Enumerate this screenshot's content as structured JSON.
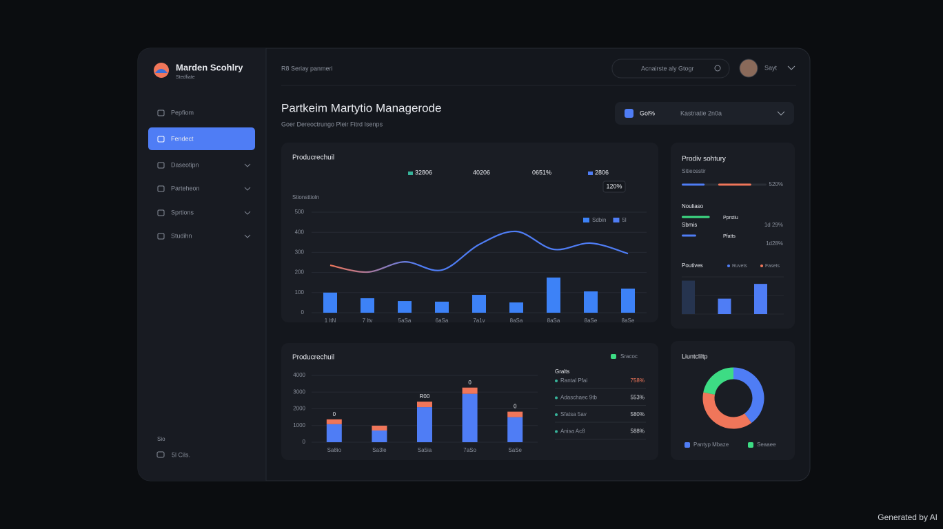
{
  "brand": {
    "name": "Marden Scohlry",
    "tagline": "Stedfiate"
  },
  "nav": {
    "items": [
      "Pepfiom",
      "Fendect",
      "Daseotipn",
      "Parteheon",
      "Sprtions",
      "Studihn"
    ],
    "active": 1,
    "expandable": [
      false,
      false,
      true,
      true,
      true,
      true
    ]
  },
  "sidebar_footer": {
    "caption": "Sio",
    "item": "5l Cils."
  },
  "topbar": {
    "breadcrumb": "R8 Seriay panmeri",
    "search_placeholder": "Acnairste aly Gtogr",
    "user": "Sayt"
  },
  "page": {
    "title": "Partkeim Martytio Managerode",
    "subtitle": "Goer Dereoctrungo Pleir Fitrd Isenps"
  },
  "filter": {
    "tag": "Gol%",
    "range": "Kastnatie 2n0a"
  },
  "chart_data": [
    {
      "type": "bar-line",
      "title": "Producrechuil",
      "stats": [
        {
          "label": "32806",
          "color": "#37b39a"
        },
        {
          "label": "40206"
        },
        {
          "label": "0651%"
        },
        {
          "label": "2806",
          "color": "#4f7df5"
        }
      ],
      "badge": "120%",
      "y_label": "Stionsttioln",
      "categories": [
        "1 ltN",
        "7 ltv",
        "5aSa",
        "6aSa",
        "7a1v",
        "8aSa",
        "8aSa",
        "8aSe",
        "8aSe"
      ],
      "ylim": [
        0,
        500
      ],
      "yticks": [
        0,
        100,
        200,
        300,
        400,
        500
      ],
      "grid": true,
      "legend": "top-right",
      "series": [
        {
          "name": "Sdbin",
          "type": "bar",
          "color": "#3d82f7",
          "values": [
            100,
            72,
            58,
            55,
            89,
            51,
            175,
            106,
            120
          ]
        },
        {
          "name": "5l",
          "type": "line",
          "color": "#4f7df5",
          "start_color": "#f0765a",
          "values": [
            236,
            202,
            253,
            212,
            339,
            404,
            315,
            346,
            294
          ]
        }
      ]
    },
    {
      "type": "stacked-bar",
      "title": "Producrechuil",
      "legend": [
        {
          "label": "Sracoc",
          "color": "#3ddc84"
        }
      ],
      "categories": [
        "Sa8io",
        "Sa3le",
        "Sa5ia",
        "7aSo",
        "SaSe"
      ],
      "ylim": [
        0,
        4000
      ],
      "yticks": [
        0,
        1000,
        2000,
        3000,
        4000
      ],
      "grid": true,
      "series": [
        {
          "color": "#4f7df5",
          "values": [
            1080,
            700,
            2100,
            2900,
            1500
          ]
        },
        {
          "color": "#f0765a",
          "values": [
            290,
            290,
            330,
            370,
            330
          ]
        }
      ],
      "bar_labels": [
        "0",
        null,
        "R00",
        "0",
        "0"
      ],
      "table": {
        "header": "Gralts",
        "rows": [
          [
            "Rantal Pfai",
            "758%"
          ],
          [
            "Adaschaec 9tb",
            "553%"
          ],
          [
            "Sfatsa 5av",
            "580%"
          ],
          [
            "Anisa Ac8",
            "588%"
          ]
        ],
        "highlight": 0
      }
    },
    {
      "type": "donut",
      "title": "Liuntcliltp",
      "values": [
        40,
        38,
        22
      ],
      "colors": [
        "#4f7df5",
        "#f0765a",
        "#3ddc84"
      ],
      "legend": [
        {
          "label": "Pantyp Mbaze",
          "color": "#4f7df5"
        },
        {
          "label": "Seaaee",
          "color": "#3ddc84"
        }
      ]
    }
  ],
  "summary": {
    "title": "Prodiv sohtury",
    "caption": "Sitieosstir",
    "rows": [
      {
        "segments": [
          {
            "start": 0,
            "length": 27,
            "color": "#4f7df5"
          },
          {
            "start": 43,
            "length": 39,
            "color": "#f0765a"
          }
        ],
        "value": "520%"
      },
      {
        "label": "Nouliaso",
        "segments": [
          {
            "start": 0,
            "length": 33,
            "color": "#3ddc84"
          }
        ],
        "note": "Pprstiu",
        "value": "1d 29%"
      },
      {
        "label": "Sbmis",
        "segments": [
          {
            "start": 0,
            "length": 17,
            "color": "#4f7df5"
          }
        ],
        "note": "Pfatts",
        "value": "1d28%"
      }
    ],
    "mini": {
      "title": "Poutives",
      "legend": [
        {
          "label": "Ruvets",
          "color": "#4f7df5"
        },
        {
          "label": "Fasets",
          "color": "#f0765a"
        }
      ],
      "values": [
        52,
        24,
        47
      ],
      "colors": [
        "#26344f",
        "#4f7df5",
        "#4f7df5"
      ],
      "ylim": [
        0,
        60
      ]
    }
  },
  "watermark": "Generated by AI"
}
